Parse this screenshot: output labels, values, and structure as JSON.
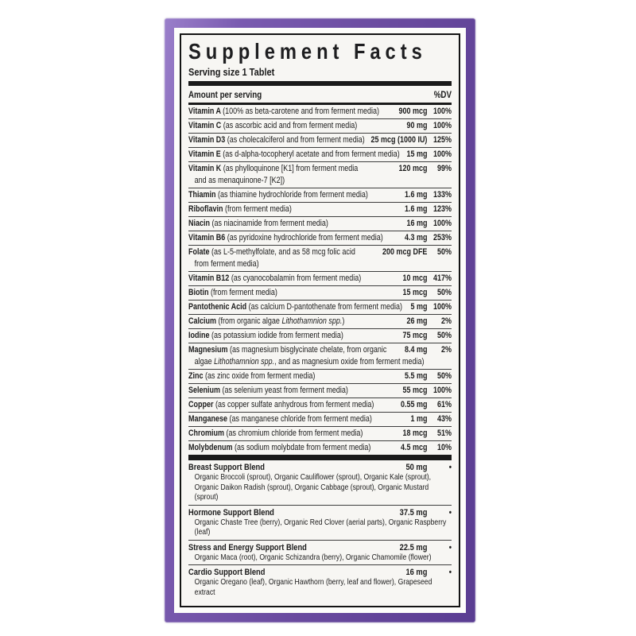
{
  "label": {
    "title": "Supplement Facts",
    "serving_size": "Serving size 1 Tablet",
    "header": {
      "amount": "Amount per serving",
      "dv": "%DV"
    },
    "colors": {
      "frame_purple": "#6a4b9f",
      "box_border_black": "#141414",
      "label_background": "#f7f6f3",
      "text_black": "#1b1b1b"
    },
    "nutrients": [
      {
        "name": "Vitamin A",
        "desc": "(100% as beta-carotene and from ferment media)",
        "amount": "900 mcg",
        "dv": "100%"
      },
      {
        "name": "Vitamin C",
        "desc": "(as ascorbic acid and from ferment media)",
        "amount": "90 mg",
        "dv": "100%"
      },
      {
        "name": "Vitamin D3",
        "desc": "(as cholecalciferol and from ferment media)",
        "amount": "25 mcg (1000 IU)",
        "dv": "125%"
      },
      {
        "name": "Vitamin E",
        "desc": "(as d-alpha-tocopheryl acetate and from ferment media)",
        "amount": "15 mg",
        "dv": "100%"
      },
      {
        "name": "Vitamin K",
        "desc": "(as phylloquinone [K1] from ferment media",
        "desc2": "and as menaquinone-7 [K2])",
        "amount": "120 mcg",
        "dv": "99%"
      },
      {
        "name": "Thiamin",
        "desc": "(as thiamine hydrochloride from ferment media)",
        "amount": "1.6 mg",
        "dv": "133%"
      },
      {
        "name": "Riboflavin",
        "desc": "(from ferment media)",
        "amount": "1.6 mg",
        "dv": "123%"
      },
      {
        "name": "Niacin",
        "desc": "(as niacinamide from ferment media)",
        "amount": "16 mg",
        "dv": "100%"
      },
      {
        "name": "Vitamin B6",
        "desc": "(as pyridoxine hydrochloride from ferment media)",
        "amount": "4.3 mg",
        "dv": "253%"
      },
      {
        "name": "Folate",
        "desc": "(as L-5-methylfolate, and as 58 mcg folic acid",
        "desc2": "from ferment media)",
        "amount": "200 mcg DFE",
        "dv": "50%"
      },
      {
        "name": "Vitamin B12",
        "desc": "(as cyanocobalamin from ferment media)",
        "amount": "10 mcg",
        "dv": "417%"
      },
      {
        "name": "Biotin",
        "desc": "(from ferment media)",
        "amount": "15 mcg",
        "dv": "50%"
      },
      {
        "name": "Pantothenic Acid",
        "desc": "(as calcium D-pantothenate from ferment media)",
        "amount": "5 mg",
        "dv": "100%"
      },
      {
        "name": "Calcium",
        "desc": "(from organic algae *Lithothamnion spp.*)",
        "amount": "26 mg",
        "dv": "2%"
      },
      {
        "name": "Iodine",
        "desc": "(as potassium iodide from ferment media)",
        "amount": "75 mcg",
        "dv": "50%"
      },
      {
        "name": "Magnesium",
        "desc": "(as magnesium bisglycinate chelate, from organic",
        "desc2": "algae *Lithothamnion spp.*, and as magnesium oxide from ferment media)",
        "amount": "8.4 mg",
        "dv": "2%"
      },
      {
        "name": "Zinc",
        "desc": "(as zinc oxide from ferment media)",
        "amount": "5.5 mg",
        "dv": "50%"
      },
      {
        "name": "Selenium",
        "desc": "(as selenium yeast from ferment media)",
        "amount": "55 mcg",
        "dv": "100%"
      },
      {
        "name": "Copper",
        "desc": "(as copper sulfate anhydrous from ferment media)",
        "amount": "0.55 mg",
        "dv": "61%"
      },
      {
        "name": "Manganese",
        "desc": "(as manganese chloride from ferment media)",
        "amount": "1 mg",
        "dv": "43%"
      },
      {
        "name": "Chromium",
        "desc": "(as chromium chloride from ferment media)",
        "amount": "18 mcg",
        "dv": "51%"
      },
      {
        "name": "Molybdenum",
        "desc": "(as sodium molybdate from ferment media)",
        "amount": "4.5 mcg",
        "dv": "10%"
      }
    ],
    "blends": [
      {
        "name": "Breast Support Blend",
        "amount": "50 mg",
        "dv": "•",
        "ingredients": "Organic Broccoli (sprout), Organic Cauliflower (sprout), Organic Kale (sprout), Organic Daikon Radish (sprout), Organic Cabbage (sprout), Organic Mustard (sprout)"
      },
      {
        "name": "Hormone Support Blend",
        "amount": "37.5 mg",
        "dv": "•",
        "ingredients": "Organic Chaste Tree (berry), Organic Red Clover (aerial parts), Organic Raspberry (leaf)"
      },
      {
        "name": "Stress and Energy Support Blend",
        "amount": "22.5 mg",
        "dv": "•",
        "ingredients": "Organic Maca (root), Organic Schizandra (berry), Organic Chamomile (flower)"
      },
      {
        "name": "Cardio Support Blend",
        "amount": "16 mg",
        "dv": "•",
        "ingredients": "Organic Oregano (leaf), Organic Hawthorn (berry, leaf and flower), Grapeseed extract"
      }
    ]
  }
}
